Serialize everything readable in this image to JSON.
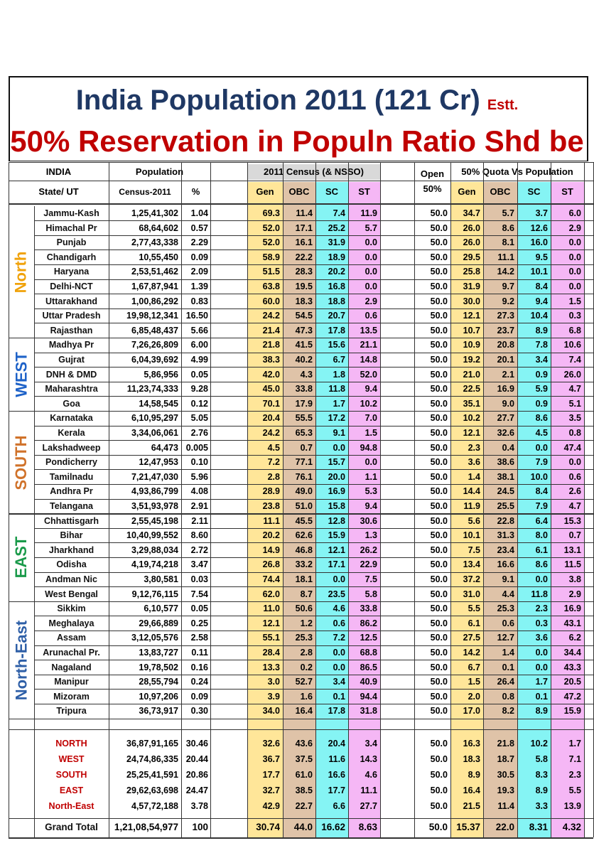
{
  "title": {
    "main": "India Population 2011 (121 Cr)",
    "estimate": "Estt.",
    "sub": "50% Reservation in Populn Ratio Shd be"
  },
  "headers": {
    "india": "INDIA",
    "state": "State/ UT",
    "population": "Population",
    "census": "Census-2011",
    "pct": "%",
    "census_group": "2011 Census (& NSSO)",
    "gen": "Gen",
    "obc": "OBC",
    "sc": "SC",
    "st": "ST",
    "open_line1": "Open",
    "open_line2": "50%",
    "quota_group": "50% Quota Vs Population"
  },
  "colors": {
    "gen": "#ffe699",
    "obc": "#dfc3a8",
    "sc": "#85f4f4",
    "st": "#f5b7f5",
    "title_blue": "#1f3864",
    "title_red": "#c00000"
  },
  "regions": [
    {
      "name": "North",
      "color": "#f0a20a",
      "rows": 9
    },
    {
      "name": "WEST",
      "color": "#1e62c8",
      "rows": 5
    },
    {
      "name": "SOUTH",
      "color": "#d0722a",
      "rows": 7
    },
    {
      "name": "EAST",
      "color": "#1a9a4a",
      "rows": 6
    },
    {
      "name": "North-East",
      "color": "#2e5fa7",
      "rows": 8
    }
  ],
  "states": [
    {
      "name": "Jammu-Kash",
      "pop": "1,25,41,302",
      "pct": "1.04",
      "gen": "69.3",
      "obc": "11.4",
      "sc": "7.4",
      "st": "11.9",
      "open": "50.0",
      "qgen": "34.7",
      "qobc": "5.7",
      "qsc": "3.7",
      "qst": "6.0"
    },
    {
      "name": "Himachal Pr",
      "pop": "68,64,602",
      "pct": "0.57",
      "gen": "52.0",
      "obc": "17.1",
      "sc": "25.2",
      "st": "5.7",
      "open": "50.0",
      "qgen": "26.0",
      "qobc": "8.6",
      "qsc": "12.6",
      "qst": "2.9"
    },
    {
      "name": "Punjab",
      "pop": "2,77,43,338",
      "pct": "2.29",
      "gen": "52.0",
      "obc": "16.1",
      "sc": "31.9",
      "st": "0.0",
      "open": "50.0",
      "qgen": "26.0",
      "qobc": "8.1",
      "qsc": "16.0",
      "qst": "0.0"
    },
    {
      "name": "Chandigarh",
      "pop": "10,55,450",
      "pct": "0.09",
      "gen": "58.9",
      "obc": "22.2",
      "sc": "18.9",
      "st": "0.0",
      "open": "50.0",
      "qgen": "29.5",
      "qobc": "11.1",
      "qsc": "9.5",
      "qst": "0.0"
    },
    {
      "name": "Haryana",
      "pop": "2,53,51,462",
      "pct": "2.09",
      "gen": "51.5",
      "obc": "28.3",
      "sc": "20.2",
      "st": "0.0",
      "open": "50.0",
      "qgen": "25.8",
      "qobc": "14.2",
      "qsc": "10.1",
      "qst": "0.0"
    },
    {
      "name": "Delhi-NCT",
      "pop": "1,67,87,941",
      "pct": "1.39",
      "gen": "63.8",
      "obc": "19.5",
      "sc": "16.8",
      "st": "0.0",
      "open": "50.0",
      "qgen": "31.9",
      "qobc": "9.7",
      "qsc": "8.4",
      "qst": "0.0"
    },
    {
      "name": "Uttarakhand",
      "pop": "1,00,86,292",
      "pct": "0.83",
      "gen": "60.0",
      "obc": "18.3",
      "sc": "18.8",
      "st": "2.9",
      "open": "50.0",
      "qgen": "30.0",
      "qobc": "9.2",
      "qsc": "9.4",
      "qst": "1.5"
    },
    {
      "name": "Uttar Pradesh",
      "pop": "19,98,12,341",
      "pct": "16.50",
      "gen": "24.2",
      "obc": "54.5",
      "sc": "20.7",
      "st": "0.6",
      "open": "50.0",
      "qgen": "12.1",
      "qobc": "27.3",
      "qsc": "10.4",
      "qst": "0.3"
    },
    {
      "name": "Rajasthan",
      "pop": "6,85,48,437",
      "pct": "5.66",
      "gen": "21.4",
      "obc": "47.3",
      "sc": "17.8",
      "st": "13.5",
      "open": "50.0",
      "qgen": "10.7",
      "qobc": "23.7",
      "qsc": "8.9",
      "qst": "6.8"
    },
    {
      "name": "Madhya Pr",
      "pop": "7,26,26,809",
      "pct": "6.00",
      "gen": "21.8",
      "obc": "41.5",
      "sc": "15.6",
      "st": "21.1",
      "open": "50.0",
      "qgen": "10.9",
      "qobc": "20.8",
      "qsc": "7.8",
      "qst": "10.6"
    },
    {
      "name": "Gujrat",
      "pop": "6,04,39,692",
      "pct": "4.99",
      "gen": "38.3",
      "obc": "40.2",
      "sc": "6.7",
      "st": "14.8",
      "open": "50.0",
      "qgen": "19.2",
      "qobc": "20.1",
      "qsc": "3.4",
      "qst": "7.4"
    },
    {
      "name": "DNH & DMD",
      "pop": "5,86,956",
      "pct": "0.05",
      "gen": "42.0",
      "obc": "4.3",
      "sc": "1.8",
      "st": "52.0",
      "open": "50.0",
      "qgen": "21.0",
      "qobc": "2.1",
      "qsc": "0.9",
      "qst": "26.0"
    },
    {
      "name": "Maharashtra",
      "pop": "11,23,74,333",
      "pct": "9.28",
      "gen": "45.0",
      "obc": "33.8",
      "sc": "11.8",
      "st": "9.4",
      "open": "50.0",
      "qgen": "22.5",
      "qobc": "16.9",
      "qsc": "5.9",
      "qst": "4.7"
    },
    {
      "name": "Goa",
      "pop": "14,58,545",
      "pct": "0.12",
      "gen": "70.1",
      "obc": "17.9",
      "sc": "1.7",
      "st": "10.2",
      "open": "50.0",
      "qgen": "35.1",
      "qobc": "9.0",
      "qsc": "0.9",
      "qst": "5.1"
    },
    {
      "name": "Karnataka",
      "pop": "6,10,95,297",
      "pct": "5.05",
      "gen": "20.4",
      "obc": "55.5",
      "sc": "17.2",
      "st": "7.0",
      "open": "50.0",
      "qgen": "10.2",
      "qobc": "27.7",
      "qsc": "8.6",
      "qst": "3.5"
    },
    {
      "name": "Kerala",
      "pop": "3,34,06,061",
      "pct": "2.76",
      "gen": "24.2",
      "obc": "65.3",
      "sc": "9.1",
      "st": "1.5",
      "open": "50.0",
      "qgen": "12.1",
      "qobc": "32.6",
      "qsc": "4.5",
      "qst": "0.8"
    },
    {
      "name": "Lakshadweep",
      "pop": "64,473",
      "pct": "0.005",
      "gen": "4.5",
      "obc": "0.7",
      "sc": "0.0",
      "st": "94.8",
      "open": "50.0",
      "qgen": "2.3",
      "qobc": "0.4",
      "qsc": "0.0",
      "qst": "47.4"
    },
    {
      "name": "Pondicherry",
      "pop": "12,47,953",
      "pct": "0.10",
      "gen": "7.2",
      "obc": "77.1",
      "sc": "15.7",
      "st": "0.0",
      "open": "50.0",
      "qgen": "3.6",
      "qobc": "38.6",
      "qsc": "7.9",
      "qst": "0.0"
    },
    {
      "name": "Tamilnadu",
      "pop": "7,21,47,030",
      "pct": "5.96",
      "gen": "2.8",
      "obc": "76.1",
      "sc": "20.0",
      "st": "1.1",
      "open": "50.0",
      "qgen": "1.4",
      "qobc": "38.1",
      "qsc": "10.0",
      "qst": "0.6"
    },
    {
      "name": "Andhra Pr",
      "pop": "4,93,86,799",
      "pct": "4.08",
      "gen": "28.9",
      "obc": "49.0",
      "sc": "16.9",
      "st": "5.3",
      "open": "50.0",
      "qgen": "14.4",
      "qobc": "24.5",
      "qsc": "8.4",
      "qst": "2.6"
    },
    {
      "name": "Telangana",
      "pop": "3,51,93,978",
      "pct": "2.91",
      "gen": "23.8",
      "obc": "51.0",
      "sc": "15.8",
      "st": "9.4",
      "open": "50.0",
      "qgen": "11.9",
      "qobc": "25.5",
      "qsc": "7.9",
      "qst": "4.7"
    },
    {
      "name": "Chhattisgarh",
      "pop": "2,55,45,198",
      "pct": "2.11",
      "gen": "11.1",
      "obc": "45.5",
      "sc": "12.8",
      "st": "30.6",
      "open": "50.0",
      "qgen": "5.6",
      "qobc": "22.8",
      "qsc": "6.4",
      "qst": "15.3"
    },
    {
      "name": "Bihar",
      "pop": "10,40,99,552",
      "pct": "8.60",
      "gen": "20.2",
      "obc": "62.6",
      "sc": "15.9",
      "st": "1.3",
      "open": "50.0",
      "qgen": "10.1",
      "qobc": "31.3",
      "qsc": "8.0",
      "qst": "0.7"
    },
    {
      "name": "Jharkhand",
      "pop": "3,29,88,034",
      "pct": "2.72",
      "gen": "14.9",
      "obc": "46.8",
      "sc": "12.1",
      "st": "26.2",
      "open": "50.0",
      "qgen": "7.5",
      "qobc": "23.4",
      "qsc": "6.1",
      "qst": "13.1"
    },
    {
      "name": "Odisha",
      "pop": "4,19,74,218",
      "pct": "3.47",
      "gen": "26.8",
      "obc": "33.2",
      "sc": "17.1",
      "st": "22.9",
      "open": "50.0",
      "qgen": "13.4",
      "qobc": "16.6",
      "qsc": "8.6",
      "qst": "11.5"
    },
    {
      "name": "Andman Nic",
      "pop": "3,80,581",
      "pct": "0.03",
      "gen": "74.4",
      "obc": "18.1",
      "sc": "0.0",
      "st": "7.5",
      "open": "50.0",
      "qgen": "37.2",
      "qobc": "9.1",
      "qsc": "0.0",
      "qst": "3.8"
    },
    {
      "name": "West Bengal",
      "pop": "9,12,76,115",
      "pct": "7.54",
      "gen": "62.0",
      "obc": "8.7",
      "sc": "23.5",
      "st": "5.8",
      "open": "50.0",
      "qgen": "31.0",
      "qobc": "4.4",
      "qsc": "11.8",
      "qst": "2.9"
    },
    {
      "name": "Sikkim",
      "pop": "6,10,577",
      "pct": "0.05",
      "gen": "11.0",
      "obc": "50.6",
      "sc": "4.6",
      "st": "33.8",
      "open": "50.0",
      "qgen": "5.5",
      "qobc": "25.3",
      "qsc": "2.3",
      "qst": "16.9"
    },
    {
      "name": "Meghalaya",
      "pop": "29,66,889",
      "pct": "0.25",
      "gen": "12.1",
      "obc": "1.2",
      "sc": "0.6",
      "st": "86.2",
      "open": "50.0",
      "qgen": "6.1",
      "qobc": "0.6",
      "qsc": "0.3",
      "qst": "43.1"
    },
    {
      "name": "Assam",
      "pop": "3,12,05,576",
      "pct": "2.58",
      "gen": "55.1",
      "obc": "25.3",
      "sc": "7.2",
      "st": "12.5",
      "open": "50.0",
      "qgen": "27.5",
      "qobc": "12.7",
      "qsc": "3.6",
      "qst": "6.2"
    },
    {
      "name": "Arunachal Pr.",
      "pop": "13,83,727",
      "pct": "0.11",
      "gen": "28.4",
      "obc": "2.8",
      "sc": "0.0",
      "st": "68.8",
      "open": "50.0",
      "qgen": "14.2",
      "qobc": "1.4",
      "qsc": "0.0",
      "qst": "34.4"
    },
    {
      "name": "Nagaland",
      "pop": "19,78,502",
      "pct": "0.16",
      "gen": "13.3",
      "obc": "0.2",
      "sc": "0.0",
      "st": "86.5",
      "open": "50.0",
      "qgen": "6.7",
      "qobc": "0.1",
      "qsc": "0.0",
      "qst": "43.3"
    },
    {
      "name": "Manipur",
      "pop": "28,55,794",
      "pct": "0.24",
      "gen": "3.0",
      "obc": "52.7",
      "sc": "3.4",
      "st": "40.9",
      "open": "50.0",
      "qgen": "1.5",
      "qobc": "26.4",
      "qsc": "1.7",
      "qst": "20.5"
    },
    {
      "name": "Mizoram",
      "pop": "10,97,206",
      "pct": "0.09",
      "gen": "3.9",
      "obc": "1.6",
      "sc": "0.1",
      "st": "94.4",
      "open": "50.0",
      "qgen": "2.0",
      "qobc": "0.8",
      "qsc": "0.1",
      "qst": "47.2"
    },
    {
      "name": "Tripura",
      "pop": "36,73,917",
      "pct": "0.30",
      "gen": "34.0",
      "obc": "16.4",
      "sc": "17.8",
      "st": "31.8",
      "open": "50.0",
      "qgen": "17.0",
      "qobc": "8.2",
      "qsc": "8.9",
      "qst": "15.9"
    }
  ],
  "summary": [
    {
      "name": "NORTH",
      "pop": "36,87,91,165",
      "pct": "30.46",
      "gen": "32.6",
      "obc": "43.6",
      "sc": "20.4",
      "st": "3.4",
      "open": "50.0",
      "qgen": "16.3",
      "qobc": "21.8",
      "qsc": "10.2",
      "qst": "1.7"
    },
    {
      "name": "WEST",
      "pop": "24,74,86,335",
      "pct": "20.44",
      "gen": "36.7",
      "obc": "37.5",
      "sc": "11.6",
      "st": "14.3",
      "open": "50.0",
      "qgen": "18.3",
      "qobc": "18.7",
      "qsc": "5.8",
      "qst": "7.1"
    },
    {
      "name": "SOUTH",
      "pop": "25,25,41,591",
      "pct": "20.86",
      "gen": "17.7",
      "obc": "61.0",
      "sc": "16.6",
      "st": "4.6",
      "open": "50.0",
      "qgen": "8.9",
      "qobc": "30.5",
      "qsc": "8.3",
      "qst": "2.3"
    },
    {
      "name": "EAST",
      "pop": "29,62,63,698",
      "pct": "24.47",
      "gen": "32.7",
      "obc": "38.5",
      "sc": "17.7",
      "st": "11.1",
      "open": "50.0",
      "qgen": "16.4",
      "qobc": "19.3",
      "qsc": "8.9",
      "qst": "5.5"
    },
    {
      "name": "North-East",
      "pop": "4,57,72,188",
      "pct": "3.78",
      "gen": "42.9",
      "obc": "22.7",
      "sc": "6.6",
      "st": "27.7",
      "open": "50.0",
      "qgen": "21.5",
      "qobc": "11.4",
      "qsc": "3.3",
      "qst": "13.9"
    }
  ],
  "grand_total": {
    "name": "Grand Total",
    "pop": "1,21,08,54,977",
    "pct": "100",
    "gen": "30.74",
    "obc": "44.0",
    "sc": "16.62",
    "st": "8.63",
    "open": "50.0",
    "qgen": "15.37",
    "qobc": "22.0",
    "qsc": "8.31",
    "qst": "4.32"
  }
}
